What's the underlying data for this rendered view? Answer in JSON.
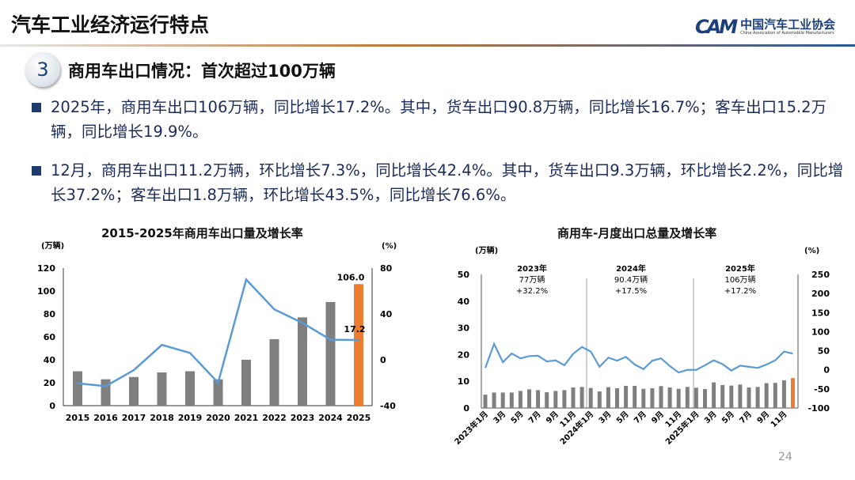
{
  "header": {
    "title": "汽车工业经济运行特点",
    "logo_cn": "中国汽车工业协会",
    "logo_en": "China Association of Automobile Manufacturers",
    "logo_mark": "CAM"
  },
  "section": {
    "number": "3",
    "title": "商用车出口情况：首次超过100万辆"
  },
  "bullets": [
    "2025年，商用车出口106万辆，同比增长17.2%。其中，货车出口90.8万辆，同比增长16.7%；客车出口15.2万辆，同比增长19.9%。",
    "12月，商用车出口11.2万辆，环比增长7.3%，同比增长42.4%。其中，货车出口9.3万辆，环比增长2.2%，同比增长37.2%；客车出口1.8万辆，环比增长43.5%，同比增长76.6%。"
  ],
  "page_number": "24",
  "chart_data": [
    {
      "type": "bar+line",
      "title": "2015-2025年商用车出口量及增长率",
      "ylabel": "(万辆)",
      "y2label": "(%)",
      "ylim": [
        0,
        120
      ],
      "y2lim": [
        -40,
        80
      ],
      "yticks": [
        "0",
        "20",
        "40",
        "60",
        "80",
        "100",
        "120"
      ],
      "y2ticks": [
        "-40",
        "0",
        "40",
        "80"
      ],
      "categories": [
        "2015",
        "2016",
        "2017",
        "2018",
        "2019",
        "2020",
        "2021",
        "2022",
        "2023",
        "2024",
        "2025"
      ],
      "series": [
        {
          "kind": "bar",
          "values": [
            30,
            23,
            25,
            29,
            30,
            23,
            40,
            58,
            77,
            90.4,
            106.0
          ],
          "color": "#7f7f7f",
          "highlight_color": "#ed7d31"
        },
        {
          "kind": "line",
          "axis": "right",
          "values": [
            -20.5,
            -23,
            -9,
            13,
            6,
            -20,
            70,
            44,
            32.2,
            17.5,
            17.2
          ],
          "color": "#5b9bd5"
        }
      ],
      "data_labels": {
        "bar_last": "106.0",
        "line_last": "17.2"
      },
      "grid": false
    },
    {
      "type": "bar+line",
      "title": "商用车-月度出口总量及增长率",
      "ylabel": "(万辆)",
      "y2label": "(%)",
      "ylim": [
        0,
        50
      ],
      "y2lim": [
        -100,
        250
      ],
      "yticks": [
        "0",
        "10",
        "20",
        "30",
        "40",
        "50"
      ],
      "y2ticks": [
        "-100",
        "-50",
        "0",
        "50",
        "100",
        "150",
        "200",
        "250"
      ],
      "xtick_labels": [
        "2023年1月",
        "3月",
        "5月",
        "7月",
        "9月",
        "11月",
        "2024年1月",
        "3月",
        "5月",
        "7月",
        "9月",
        "11月",
        "2025年1月",
        "3月",
        "5月",
        "7月",
        "9月",
        "11月"
      ],
      "bars": [
        5,
        5.8,
        5.8,
        5.8,
        6.4,
        7,
        6.7,
        5.9,
        6.4,
        6.7,
        7.7,
        7.9,
        7.5,
        6.2,
        7.8,
        7.4,
        8.3,
        8.3,
        7.2,
        7.4,
        8.2,
        7.7,
        7.2,
        7.9,
        7.6,
        7.1,
        9.6,
        8.6,
        8.4,
        8.8,
        7.7,
        7.9,
        9.3,
        9.4,
        10.4,
        11.2
      ],
      "line": [
        5,
        68,
        20,
        43,
        30,
        36,
        37,
        22,
        25,
        12,
        42,
        60,
        48,
        8,
        32,
        24,
        34,
        14,
        2,
        24,
        30,
        10,
        -7,
        0,
        0,
        12,
        25,
        15,
        -2,
        11,
        8,
        5,
        14,
        25,
        48,
        42.4
      ],
      "bar_color": "#7f7f7f",
      "highlight_color": "#ed7d31",
      "line_color": "#5b9bd5",
      "annotations": [
        {
          "year": "2023年",
          "volume": "77万辆",
          "growth": "+32.2%"
        },
        {
          "year": "2024年",
          "volume": "90.4万辆",
          "growth": "+17.5%"
        },
        {
          "year": "2025年",
          "volume": "106万辆",
          "growth": "+17.2%"
        }
      ],
      "grid": false
    }
  ]
}
